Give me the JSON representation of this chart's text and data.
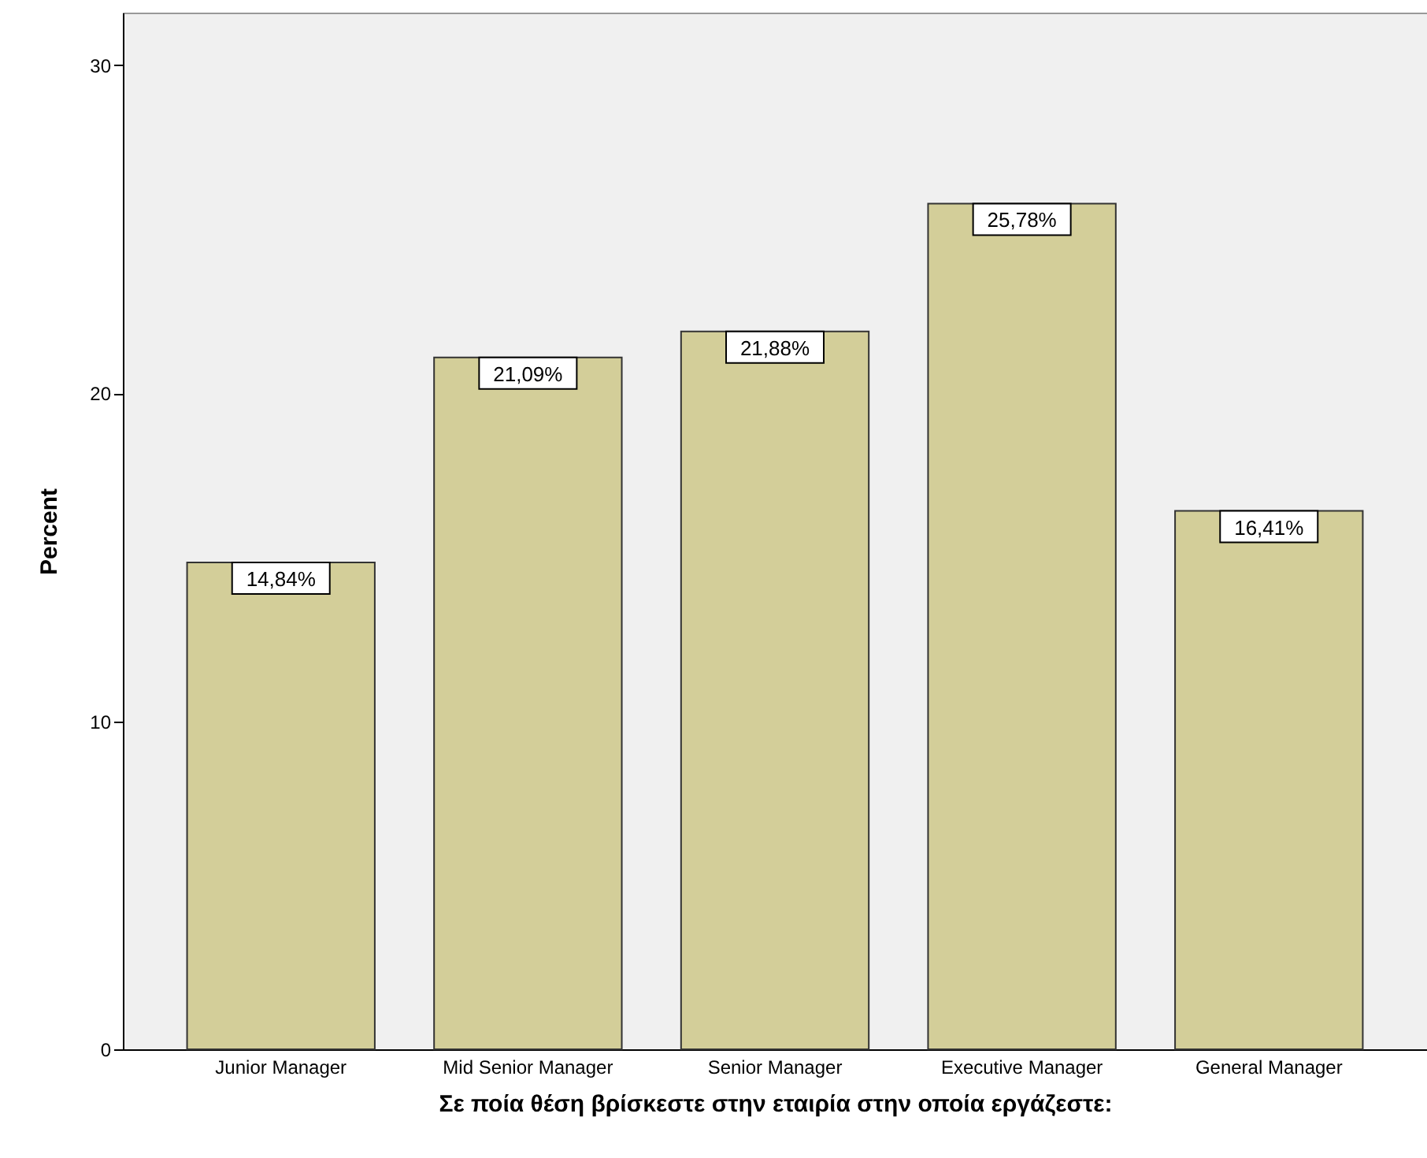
{
  "chart_data": {
    "type": "bar",
    "xlabel": "Σε ποία θέση βρίσκεστε στην εταιρία στην οποία εργάζεστε:",
    "ylabel": "Percent",
    "categories": [
      "Junior Manager",
      "Mid Senior Manager",
      "Senior Manager",
      "Executive Manager",
      "General Manager"
    ],
    "values": [
      14.84,
      21.09,
      21.88,
      25.78,
      16.41
    ],
    "value_labels": [
      "14,84%",
      "21,09%",
      "21,88%",
      "25,78%",
      "16,41%"
    ],
    "color": "#d3ce99",
    "ylim": [
      0,
      31.6
    ],
    "yticks": [
      0,
      10,
      20,
      30
    ]
  }
}
